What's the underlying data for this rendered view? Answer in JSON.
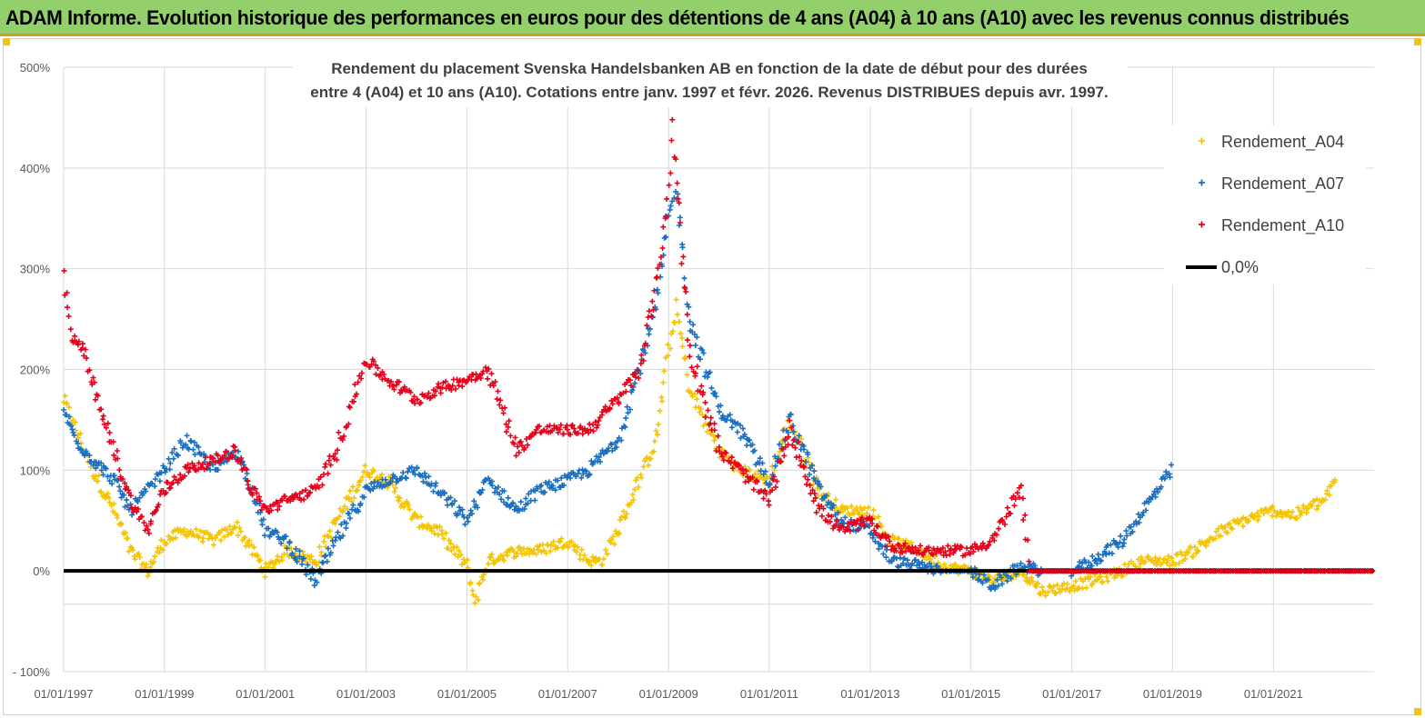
{
  "banner": {
    "title": "ADAM Informe. Evolution historique des performances en euros pour des détentions de 4 ans (A04) à 10 ans (A10) avec les revenus connus distribués"
  },
  "chart_data": {
    "type": "scatter",
    "title_line1": "Rendement du placement Svenska Handelsbanken AB en fonction de la date de début pour des durées",
    "title_line2": "entre 4 (A04) et 10 ans (A10). Cotations entre janv. 1997 et févr. 2026. Revenus DISTRIBUES depuis avr. 1997.",
    "x_axis": {
      "type": "date",
      "range": [
        "1997-01-01",
        "2022-12-31"
      ],
      "tick_labels": [
        "01/01/1997",
        "01/01/1999",
        "01/01/2001",
        "01/01/2003",
        "01/01/2005",
        "01/01/2007",
        "01/01/2009",
        "01/01/2011",
        "01/01/2013",
        "01/01/2015",
        "01/01/2017",
        "01/01/2019",
        "01/01/2021"
      ]
    },
    "y_axis": {
      "unit": "%",
      "range": [
        -100,
        500
      ],
      "tick_labels": [
        "- 100%",
        "0%",
        "100%",
        "200%",
        "300%",
        "400%",
        "500%"
      ]
    },
    "grid": "on",
    "legend_position": "top-right",
    "series": [
      {
        "name": "Rendement_A04",
        "color": "#f5c400",
        "marker": "+",
        "points": [
          [
            "1997-01-01",
            170
          ],
          [
            "1997-04-01",
            140
          ],
          [
            "1997-08-01",
            100
          ],
          [
            "1998-01-01",
            60
          ],
          [
            "1998-05-01",
            20
          ],
          [
            "1998-09-01",
            0
          ],
          [
            "1999-01-01",
            30
          ],
          [
            "1999-06-01",
            40
          ],
          [
            "2000-01-01",
            30
          ],
          [
            "2000-06-01",
            45
          ],
          [
            "2000-10-01",
            20
          ],
          [
            "2001-01-01",
            0
          ],
          [
            "2001-06-01",
            20
          ],
          [
            "2002-01-01",
            10
          ],
          [
            "2002-06-01",
            50
          ],
          [
            "2003-01-01",
            100
          ],
          [
            "2003-06-01",
            90
          ],
          [
            "2004-01-01",
            50
          ],
          [
            "2004-06-01",
            40
          ],
          [
            "2005-01-01",
            5
          ],
          [
            "2005-03-01",
            -30
          ],
          [
            "2005-06-01",
            10
          ],
          [
            "2006-01-01",
            20
          ],
          [
            "2006-06-01",
            20
          ],
          [
            "2007-01-01",
            30
          ],
          [
            "2007-06-01",
            10
          ],
          [
            "2007-09-01",
            10
          ],
          [
            "2008-01-01",
            40
          ],
          [
            "2008-06-01",
            90
          ],
          [
            "2008-10-01",
            130
          ],
          [
            "2009-01-01",
            220
          ],
          [
            "2009-03-01",
            260
          ],
          [
            "2009-06-01",
            180
          ],
          [
            "2010-01-01",
            120
          ],
          [
            "2010-06-01",
            100
          ],
          [
            "2011-01-01",
            90
          ],
          [
            "2011-06-01",
            150
          ],
          [
            "2012-01-01",
            80
          ],
          [
            "2012-06-01",
            60
          ],
          [
            "2013-01-01",
            60
          ],
          [
            "2013-06-01",
            30
          ],
          [
            "2014-01-01",
            20
          ],
          [
            "2014-06-01",
            5
          ],
          [
            "2015-01-01",
            0
          ],
          [
            "2015-06-01",
            -10
          ],
          [
            "2016-01-01",
            0
          ],
          [
            "2016-06-01",
            -20
          ],
          [
            "2017-01-01",
            -15
          ],
          [
            "2017-06-01",
            -10
          ],
          [
            "2018-01-01",
            0
          ],
          [
            "2018-06-01",
            10
          ],
          [
            "2019-01-01",
            10
          ],
          [
            "2019-06-01",
            20
          ],
          [
            "2020-01-01",
            40
          ],
          [
            "2020-06-01",
            50
          ],
          [
            "2021-01-01",
            60
          ],
          [
            "2021-06-01",
            55
          ],
          [
            "2022-01-01",
            70
          ],
          [
            "2022-04-01",
            90
          ]
        ]
      },
      {
        "name": "Rendement_A07",
        "color": "#1a6fc0",
        "marker": "+",
        "points": [
          [
            "1997-01-01",
            160
          ],
          [
            "1997-04-01",
            130
          ],
          [
            "1997-08-01",
            110
          ],
          [
            "1998-01-01",
            90
          ],
          [
            "1998-05-01",
            60
          ],
          [
            "1998-09-01",
            80
          ],
          [
            "1999-01-01",
            100
          ],
          [
            "1999-06-01",
            130
          ],
          [
            "2000-01-01",
            100
          ],
          [
            "2000-06-01",
            120
          ],
          [
            "2000-10-01",
            80
          ],
          [
            "2001-01-01",
            40
          ],
          [
            "2001-06-01",
            30
          ],
          [
            "2002-01-01",
            -10
          ],
          [
            "2002-06-01",
            30
          ],
          [
            "2003-01-01",
            80
          ],
          [
            "2003-06-01",
            90
          ],
          [
            "2004-01-01",
            100
          ],
          [
            "2004-06-01",
            80
          ],
          [
            "2005-01-01",
            50
          ],
          [
            "2005-06-01",
            90
          ],
          [
            "2006-01-01",
            60
          ],
          [
            "2006-06-01",
            80
          ],
          [
            "2007-01-01",
            90
          ],
          [
            "2007-06-01",
            100
          ],
          [
            "2008-01-01",
            130
          ],
          [
            "2008-06-01",
            200
          ],
          [
            "2008-10-01",
            260
          ],
          [
            "2009-01-01",
            350
          ],
          [
            "2009-03-01",
            380
          ],
          [
            "2009-06-01",
            250
          ],
          [
            "2010-01-01",
            160
          ],
          [
            "2010-06-01",
            140
          ],
          [
            "2011-01-01",
            90
          ],
          [
            "2011-06-01",
            150
          ],
          [
            "2012-01-01",
            80
          ],
          [
            "2012-06-01",
            50
          ],
          [
            "2013-01-01",
            40
          ],
          [
            "2013-06-01",
            10
          ],
          [
            "2014-01-01",
            5
          ],
          [
            "2014-06-01",
            0
          ],
          [
            "2015-01-01",
            0
          ],
          [
            "2015-06-01",
            -15
          ],
          [
            "2016-01-01",
            5
          ],
          [
            "2016-06-01",
            0
          ],
          [
            "2017-01-01",
            0
          ],
          [
            "2017-06-01",
            10
          ],
          [
            "2018-01-01",
            30
          ],
          [
            "2018-06-01",
            60
          ],
          [
            "2019-01-01",
            100
          ]
        ]
      },
      {
        "name": "Rendement_A10",
        "color": "#e8001a",
        "marker": "+",
        "points": [
          [
            "1997-01-01",
            290
          ],
          [
            "1997-03-01",
            230
          ],
          [
            "1997-06-01",
            220
          ],
          [
            "1997-09-01",
            170
          ],
          [
            "1998-01-01",
            120
          ],
          [
            "1998-05-01",
            70
          ],
          [
            "1998-09-01",
            40
          ],
          [
            "1999-01-01",
            80
          ],
          [
            "1999-06-01",
            100
          ],
          [
            "2000-01-01",
            110
          ],
          [
            "2000-06-01",
            120
          ],
          [
            "2000-10-01",
            80
          ],
          [
            "2001-01-01",
            60
          ],
          [
            "2001-06-01",
            70
          ],
          [
            "2002-01-01",
            80
          ],
          [
            "2002-06-01",
            120
          ],
          [
            "2003-01-01",
            210
          ],
          [
            "2003-06-01",
            190
          ],
          [
            "2004-01-01",
            170
          ],
          [
            "2004-06-01",
            180
          ],
          [
            "2005-01-01",
            190
          ],
          [
            "2005-06-01",
            200
          ],
          [
            "2006-01-01",
            120
          ],
          [
            "2006-06-01",
            140
          ],
          [
            "2007-01-01",
            140
          ],
          [
            "2007-06-01",
            140
          ],
          [
            "2008-01-01",
            170
          ],
          [
            "2008-06-01",
            200
          ],
          [
            "2008-10-01",
            280
          ],
          [
            "2009-01-01",
            380
          ],
          [
            "2009-02-01",
            440
          ],
          [
            "2009-06-01",
            220
          ],
          [
            "2010-01-01",
            120
          ],
          [
            "2010-06-01",
            100
          ],
          [
            "2011-01-01",
            70
          ],
          [
            "2011-06-01",
            140
          ],
          [
            "2012-01-01",
            60
          ],
          [
            "2012-06-01",
            40
          ],
          [
            "2013-01-01",
            50
          ],
          [
            "2013-06-01",
            25
          ],
          [
            "2014-01-01",
            20
          ],
          [
            "2014-06-01",
            20
          ],
          [
            "2015-01-01",
            20
          ],
          [
            "2015-06-01",
            30
          ],
          [
            "2016-01-01",
            80
          ],
          [
            "2016-03-01",
            0
          ],
          [
            "2017-01-01",
            0
          ],
          [
            "2018-01-01",
            0
          ],
          [
            "2019-01-01",
            0
          ],
          [
            "2020-01-01",
            0
          ],
          [
            "2021-01-01",
            0
          ],
          [
            "2022-01-01",
            0
          ],
          [
            "2022-12-31",
            0
          ]
        ]
      },
      {
        "name": "0,0%",
        "color": "#000000",
        "marker": "line",
        "points": [
          [
            "1997-01-01",
            0
          ],
          [
            "2022-12-31",
            0
          ]
        ]
      }
    ]
  }
}
